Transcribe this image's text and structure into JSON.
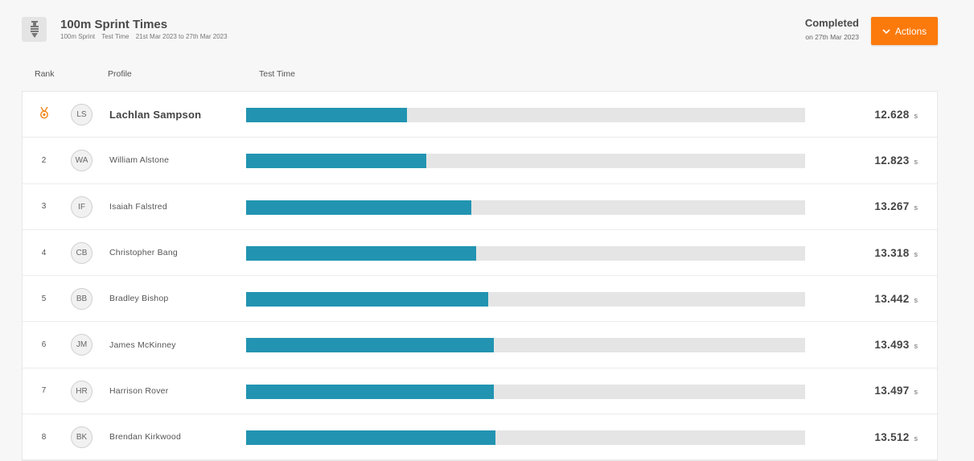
{
  "header": {
    "title": "100m Sprint Times",
    "subtitle_test": "100m Sprint",
    "subtitle_type": "Test Time",
    "subtitle_range": "21st Mar 2023 to 27th Mar 2023",
    "status": "Completed",
    "status_date": "on 27th Mar 2023",
    "actions_label": "Actions"
  },
  "columns": {
    "rank": "Rank",
    "profile": "Profile",
    "test_time": "Test Time"
  },
  "colors": {
    "accent": "#fc7a0c",
    "bar": "#2294b1",
    "medal": "#f0891a"
  },
  "rows": [
    {
      "rank": "",
      "medal": true,
      "initials": "LS",
      "name": "Lachlan Sampson",
      "time": "12.628",
      "unit": "s",
      "bar_fraction": 0.288
    },
    {
      "rank": "2",
      "initials": "WA",
      "name": "William Alstone",
      "time": "12.823",
      "unit": "s",
      "bar_fraction": 0.322
    },
    {
      "rank": "3",
      "initials": "IF",
      "name": "Isaiah Falstred",
      "time": "13.267",
      "unit": "s",
      "bar_fraction": 0.403
    },
    {
      "rank": "4",
      "initials": "CB",
      "name": "Christopher Bang",
      "time": "13.318",
      "unit": "s",
      "bar_fraction": 0.412
    },
    {
      "rank": "5",
      "initials": "BB",
      "name": "Bradley Bishop",
      "time": "13.442",
      "unit": "s",
      "bar_fraction": 0.433
    },
    {
      "rank": "6",
      "initials": "JM",
      "name": "James McKinney",
      "time": "13.493",
      "unit": "s",
      "bar_fraction": 0.443
    },
    {
      "rank": "7",
      "initials": "HR",
      "name": "Harrison Rover",
      "time": "13.497",
      "unit": "s",
      "bar_fraction": 0.443
    },
    {
      "rank": "8",
      "initials": "BK",
      "name": "Brendan Kirkwood",
      "time": "13.512",
      "unit": "s",
      "bar_fraction": 0.446
    }
  ]
}
